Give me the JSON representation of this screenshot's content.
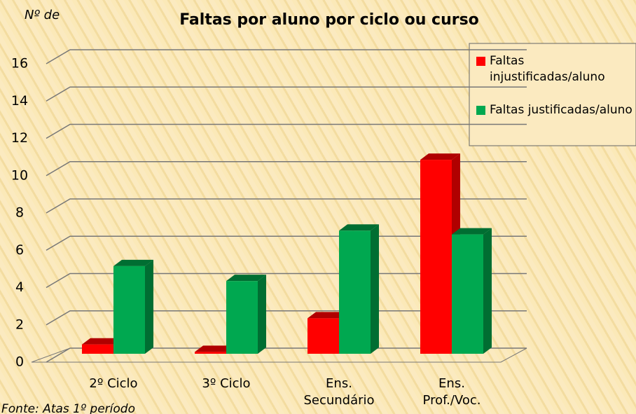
{
  "chart_data": {
    "type": "bar3d",
    "title": "Faltas por aluno por ciclo ou curso",
    "y_label": "Nº de",
    "source": "Fonte: Atas 1º período",
    "categories": [
      "2º Ciclo",
      "3º Ciclo",
      "Ens. Secundário",
      "Ens. Prof./Voc."
    ],
    "series": [
      {
        "name": "Faltas injustificadas/aluno",
        "color": "#ff0000",
        "side": "#b00000",
        "values": [
          0.5,
          0.1,
          1.9,
          10.4
        ]
      },
      {
        "name": "Faltas justificadas/aluno",
        "color": "#00a850",
        "side": "#006e32",
        "values": [
          4.7,
          3.9,
          6.6,
          6.4
        ]
      }
    ],
    "ylim": [
      0,
      16
    ],
    "yticks": [
      0,
      2,
      4,
      6,
      8,
      10,
      12,
      14,
      16
    ],
    "grid": true,
    "legend": "top-right"
  }
}
